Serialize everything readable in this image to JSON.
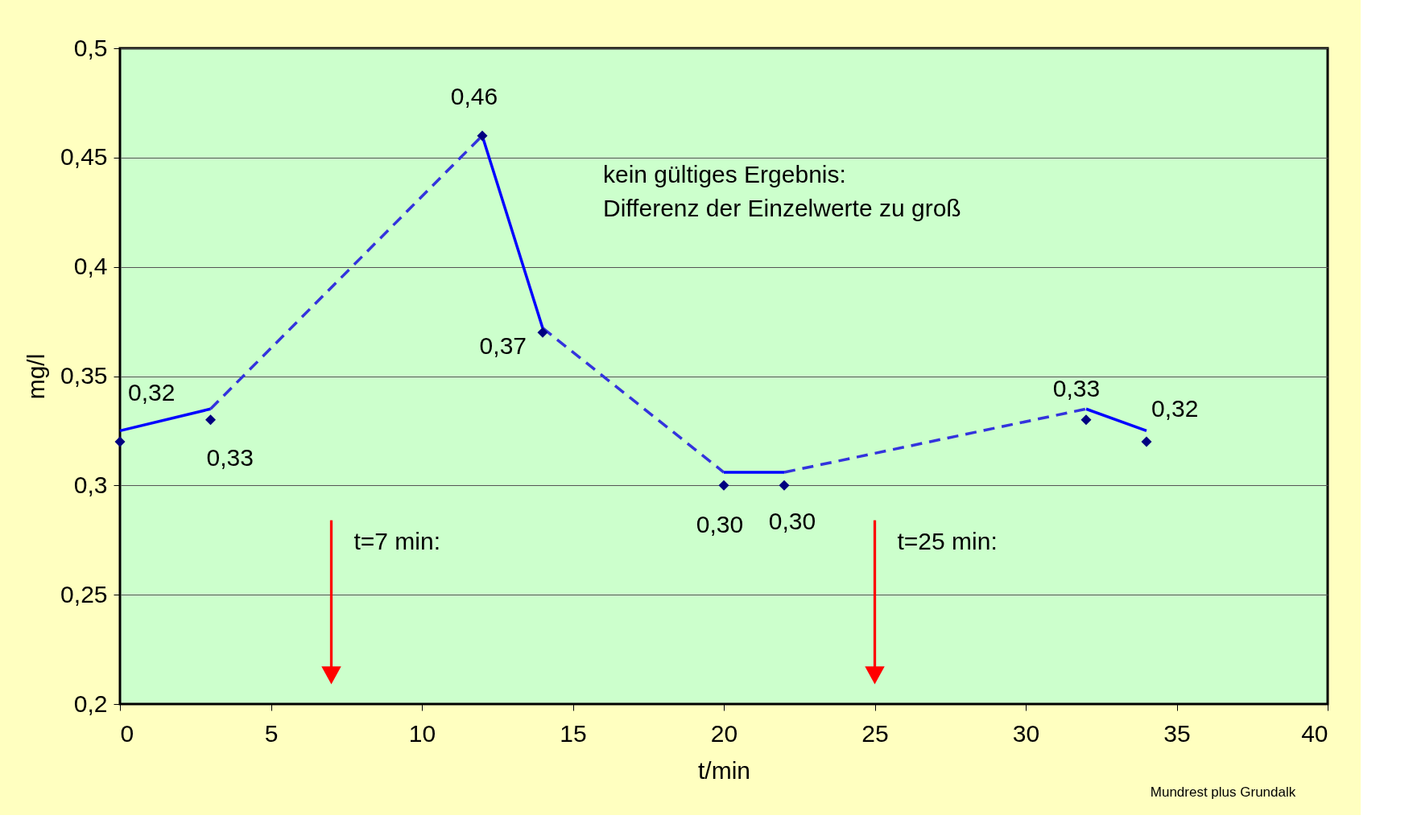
{
  "chart_data": {
    "type": "line",
    "xlabel": "t/min",
    "ylabel": "mg/l",
    "xlim": [
      0,
      40
    ],
    "xticks": [
      0,
      5,
      10,
      15,
      20,
      25,
      30,
      35,
      40
    ],
    "ylim": [
      0.2,
      0.5
    ],
    "yticks": [
      {
        "value": 0.2,
        "label": "0,2"
      },
      {
        "value": 0.25,
        "label": "0,25"
      },
      {
        "value": 0.3,
        "label": "0,3"
      },
      {
        "value": 0.35,
        "label": "0,35"
      },
      {
        "value": 0.4,
        "label": "0,4"
      },
      {
        "value": 0.45,
        "label": "0,45"
      },
      {
        "value": 0.5,
        "label": "0,5"
      }
    ],
    "grid": "y",
    "series": [
      {
        "color": "#0000ff",
        "line_style": "solid",
        "marker": "none",
        "x": [
          0,
          3,
          7.5,
          12,
          14,
          17,
          20,
          22,
          27,
          32,
          34
        ],
        "values": [
          0.325,
          0.335,
          null,
          0.46,
          0.372,
          null,
          0.306,
          0.306,
          null,
          0.335,
          0.325
        ]
      },
      {
        "color": "#3333dd",
        "line_style": "dashed",
        "marker": "none",
        "x": [
          3,
          12,
          13,
          14,
          20,
          21,
          22,
          32
        ],
        "values": [
          0.335,
          0.46,
          null,
          0.372,
          0.306,
          null,
          0.306,
          0.335
        ]
      },
      {
        "type": "scatter",
        "color": "#000080",
        "marker": "diamond",
        "x": [
          0,
          3,
          12,
          14,
          20,
          22,
          32,
          34
        ],
        "values": [
          0.32,
          0.33,
          0.46,
          0.37,
          0.3,
          0.3,
          0.33,
          0.32
        ],
        "value_labels": [
          "0,32",
          "0,33",
          "0,46",
          "0,37",
          "0,30",
          "0,30",
          "0,33",
          "0,32"
        ]
      }
    ],
    "ref_lines": [
      {
        "axis": "x",
        "value": 7,
        "label": "t=7 min:",
        "color": "#ff0000"
      },
      {
        "axis": "x",
        "value": 25,
        "label": "t=25 min:",
        "color": "#ff0000"
      }
    ],
    "annotations": [
      "kein gültiges Ergebnis:\nDifferenz der Einzelwerte zu groß",
      "Mundrest plus Grundalk"
    ]
  }
}
